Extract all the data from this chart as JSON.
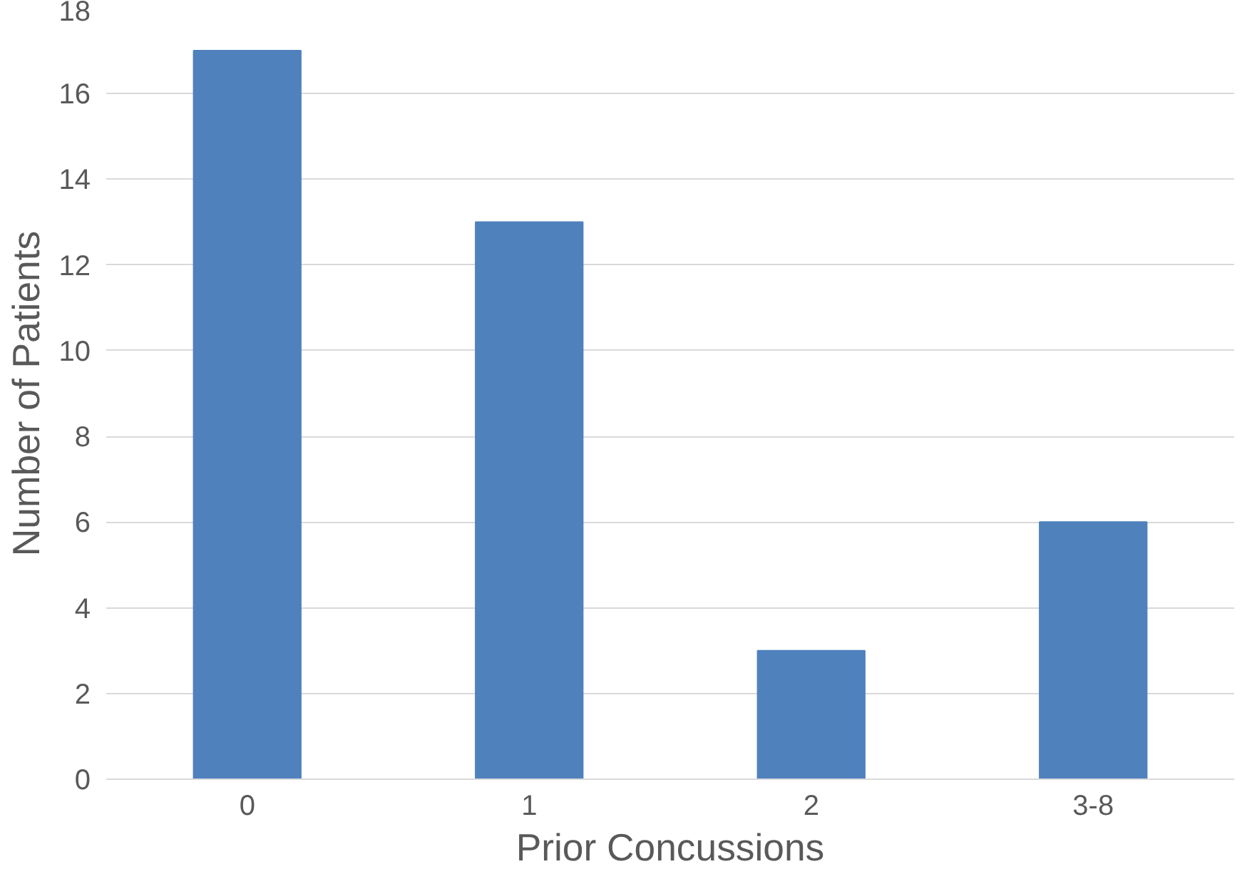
{
  "chart_data": {
    "type": "bar",
    "xlabel": "Prior Concussions",
    "ylabel": "Number of Patients",
    "categories": [
      "0",
      "1",
      "2",
      "3-8"
    ],
    "values": [
      17,
      13,
      3,
      6
    ],
    "color": "#4f81bd",
    "ylim": [
      0,
      18
    ],
    "yticks": [
      0,
      2,
      4,
      6,
      8,
      10,
      12,
      14,
      16,
      18
    ],
    "grid": "y",
    "legend": false
  }
}
